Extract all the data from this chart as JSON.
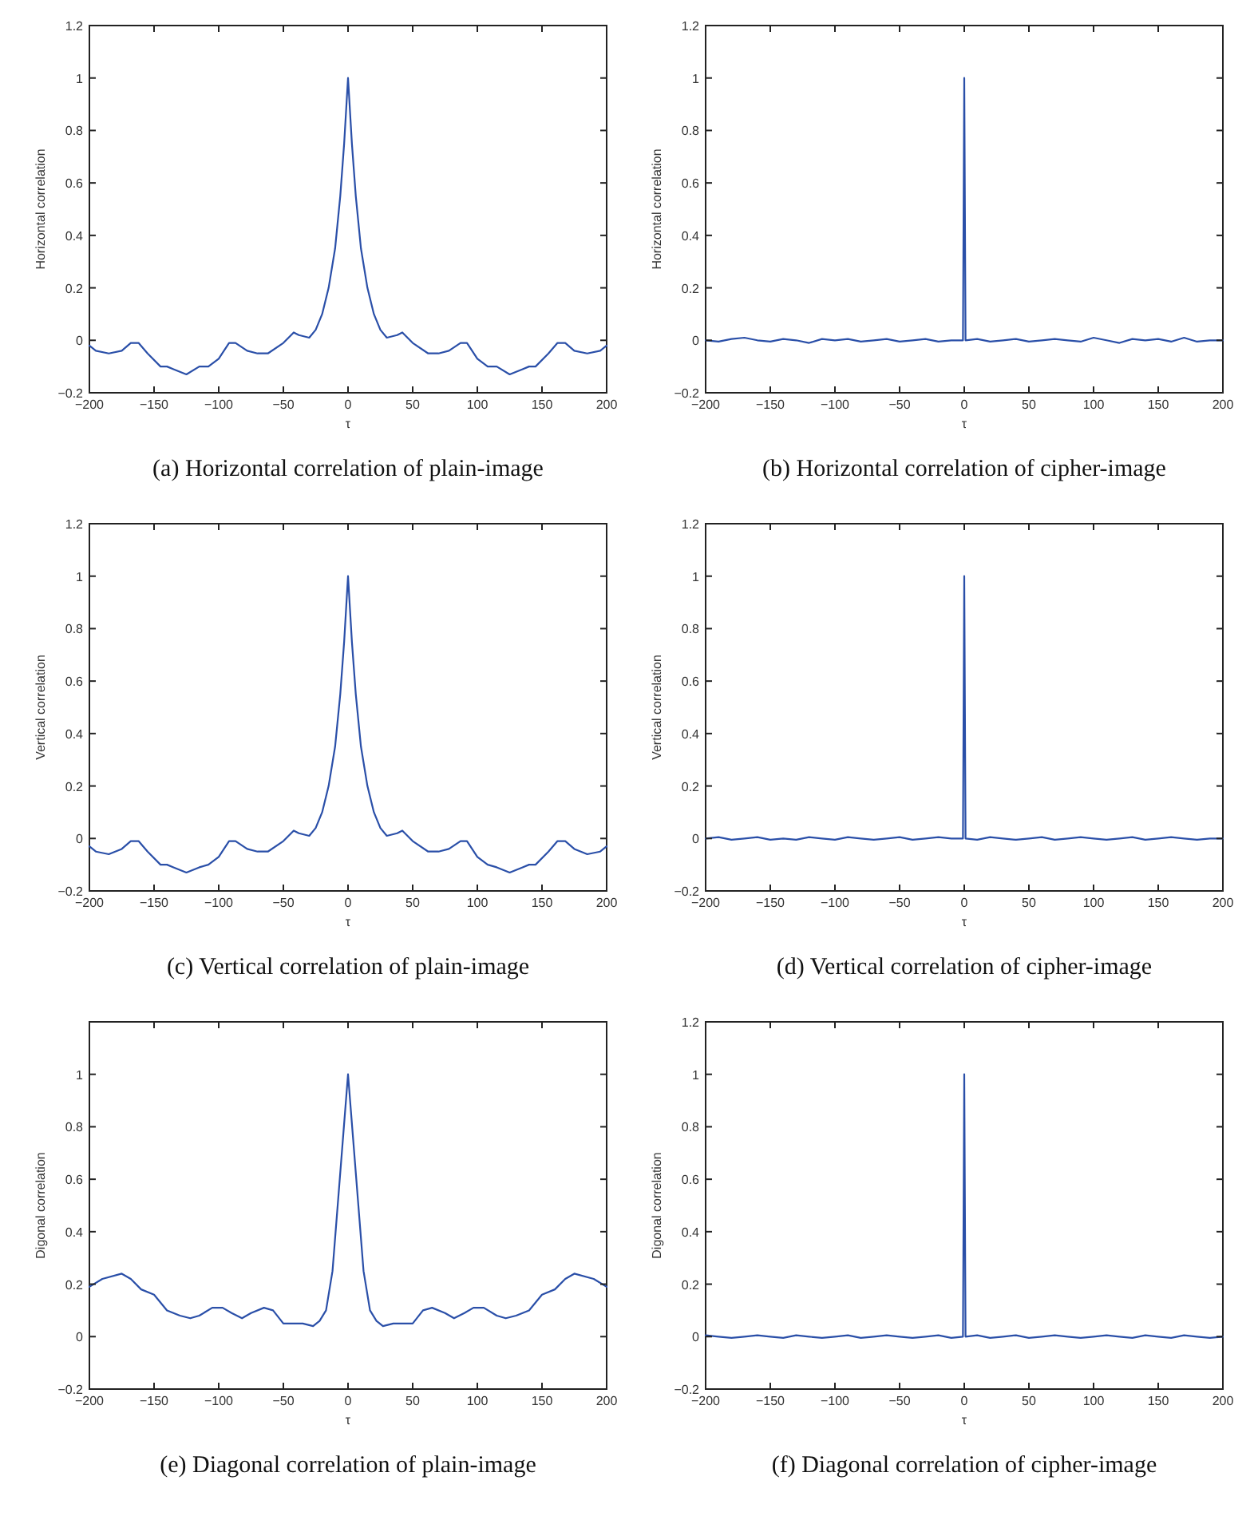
{
  "chart_data": [
    {
      "type": "line",
      "title": "(a) Horizontal correlation of plain-image",
      "xlabel": "τ",
      "ylabel": "Horizontal correlation",
      "xlim": [
        -200,
        200
      ],
      "ylim": [
        -0.2,
        1.2
      ],
      "xticks": [
        -200,
        -150,
        -100,
        -50,
        0,
        50,
        100,
        150,
        200
      ],
      "yticks": [
        -0.2,
        0,
        0.2,
        0.4,
        0.6,
        0.8,
        1,
        1.2
      ],
      "x": [
        -200,
        -195,
        -185,
        -175,
        -168,
        -162,
        -155,
        -145,
        -140,
        -135,
        -125,
        -115,
        -108,
        -100,
        -92,
        -87,
        -78,
        -70,
        -62,
        -50,
        -42,
        -38,
        -30,
        -25,
        -20,
        -15,
        -10,
        -6,
        -3,
        0,
        3,
        6,
        10,
        15,
        20,
        25,
        30,
        38,
        42,
        50,
        62,
        70,
        78,
        87,
        92,
        100,
        108,
        115,
        125,
        135,
        140,
        145,
        155,
        162,
        168,
        175,
        185,
        195,
        200
      ],
      "series": [
        {
          "color": "#2a4fa8",
          "values": [
            -0.02,
            -0.04,
            -0.05,
            -0.04,
            -0.01,
            -0.01,
            -0.05,
            -0.1,
            -0.1,
            -0.11,
            -0.13,
            -0.1,
            -0.1,
            -0.07,
            -0.01,
            -0.01,
            -0.04,
            -0.05,
            -0.05,
            -0.01,
            0.03,
            0.02,
            0.01,
            0.04,
            0.1,
            0.2,
            0.35,
            0.55,
            0.75,
            1,
            0.75,
            0.55,
            0.35,
            0.2,
            0.1,
            0.04,
            0.01,
            0.02,
            0.03,
            -0.01,
            -0.05,
            -0.05,
            -0.04,
            -0.01,
            -0.01,
            -0.07,
            -0.1,
            -0.1,
            -0.13,
            -0.11,
            -0.1,
            -0.1,
            -0.05,
            -0.01,
            -0.01,
            -0.04,
            -0.05,
            -0.04,
            -0.02
          ]
        }
      ]
    },
    {
      "type": "line",
      "title": "(b) Horizontal correlation of cipher-image",
      "xlabel": "τ",
      "ylabel": "Horizontal correlation",
      "xlim": [
        -200,
        200
      ],
      "ylim": [
        -0.2,
        1.2
      ],
      "xticks": [
        -200,
        -150,
        -100,
        -50,
        0,
        50,
        100,
        150,
        200
      ],
      "yticks": [
        -0.2,
        0,
        0.2,
        0.4,
        0.6,
        0.8,
        1,
        1.2
      ],
      "x": [
        -200,
        -190,
        -180,
        -170,
        -160,
        -150,
        -140,
        -130,
        -120,
        -110,
        -100,
        -90,
        -80,
        -70,
        -60,
        -50,
        -40,
        -30,
        -20,
        -10,
        -1,
        0,
        1,
        10,
        20,
        30,
        40,
        50,
        60,
        70,
        80,
        90,
        100,
        110,
        120,
        130,
        140,
        150,
        160,
        170,
        180,
        190,
        200
      ],
      "series": [
        {
          "color": "#2a4fa8",
          "values": [
            0,
            -0.005,
            0.005,
            0.01,
            0,
            -0.005,
            0.005,
            0,
            -0.01,
            0.005,
            0,
            0.005,
            -0.005,
            0,
            0.005,
            -0.005,
            0,
            0.005,
            -0.005,
            0,
            0,
            1,
            0,
            0.005,
            -0.005,
            0,
            0.005,
            -0.005,
            0,
            0.005,
            0,
            -0.005,
            0.01,
            0,
            -0.01,
            0.005,
            0,
            0.005,
            -0.005,
            0.01,
            -0.005,
            0,
            0
          ]
        }
      ]
    },
    {
      "type": "line",
      "title": "(c) Vertical correlation of plain-image",
      "xlabel": "τ",
      "ylabel": "Vertical correlation",
      "xlim": [
        -200,
        200
      ],
      "ylim": [
        -0.2,
        1.2
      ],
      "xticks": [
        -200,
        -150,
        -100,
        -50,
        0,
        50,
        100,
        150,
        200
      ],
      "yticks": [
        -0.2,
        0,
        0.2,
        0.4,
        0.6,
        0.8,
        1,
        1.2
      ],
      "x": [
        -200,
        -195,
        -185,
        -175,
        -168,
        -162,
        -155,
        -145,
        -140,
        -135,
        -125,
        -115,
        -108,
        -100,
        -92,
        -87,
        -78,
        -70,
        -62,
        -50,
        -42,
        -38,
        -30,
        -25,
        -20,
        -15,
        -10,
        -6,
        -3,
        0,
        3,
        6,
        10,
        15,
        20,
        25,
        30,
        38,
        42,
        50,
        62,
        70,
        78,
        87,
        92,
        100,
        108,
        115,
        125,
        135,
        140,
        145,
        155,
        162,
        168,
        175,
        185,
        195,
        200
      ],
      "series": [
        {
          "color": "#2a4fa8",
          "values": [
            -0.03,
            -0.05,
            -0.06,
            -0.04,
            -0.01,
            -0.01,
            -0.05,
            -0.1,
            -0.1,
            -0.11,
            -0.13,
            -0.11,
            -0.1,
            -0.07,
            -0.01,
            -0.01,
            -0.04,
            -0.05,
            -0.05,
            -0.01,
            0.03,
            0.02,
            0.01,
            0.04,
            0.1,
            0.2,
            0.35,
            0.55,
            0.75,
            1,
            0.75,
            0.55,
            0.35,
            0.2,
            0.1,
            0.04,
            0.01,
            0.02,
            0.03,
            -0.01,
            -0.05,
            -0.05,
            -0.04,
            -0.01,
            -0.01,
            -0.07,
            -0.1,
            -0.11,
            -0.13,
            -0.11,
            -0.1,
            -0.1,
            -0.05,
            -0.01,
            -0.01,
            -0.04,
            -0.06,
            -0.05,
            -0.03
          ]
        }
      ]
    },
    {
      "type": "line",
      "title": "(d) Vertical correlation of cipher-image",
      "xlabel": "τ",
      "ylabel": "Vertical correlation",
      "xlim": [
        -200,
        200
      ],
      "ylim": [
        -0.2,
        1.2
      ],
      "xticks": [
        -200,
        -150,
        -100,
        -50,
        0,
        50,
        100,
        150,
        200
      ],
      "yticks": [
        -0.2,
        0,
        0.2,
        0.4,
        0.6,
        0.8,
        1,
        1.2
      ],
      "x": [
        -200,
        -190,
        -180,
        -170,
        -160,
        -150,
        -140,
        -130,
        -120,
        -110,
        -100,
        -90,
        -80,
        -70,
        -60,
        -50,
        -40,
        -30,
        -20,
        -10,
        -1,
        0,
        1,
        10,
        20,
        30,
        40,
        50,
        60,
        70,
        80,
        90,
        100,
        110,
        120,
        130,
        140,
        150,
        160,
        170,
        180,
        190,
        200
      ],
      "series": [
        {
          "color": "#2a4fa8",
          "values": [
            0,
            0.005,
            -0.005,
            0,
            0.005,
            -0.005,
            0,
            -0.005,
            0.005,
            0,
            -0.005,
            0.005,
            0,
            -0.005,
            0,
            0.005,
            -0.005,
            0,
            0.005,
            0,
            0,
            1,
            0,
            -0.005,
            0.005,
            0,
            -0.005,
            0,
            0.005,
            -0.005,
            0,
            0.005,
            0,
            -0.005,
            0,
            0.005,
            -0.005,
            0,
            0.005,
            0,
            -0.005,
            0,
            0
          ]
        }
      ]
    },
    {
      "type": "line",
      "title": "(e) Diagonal correlation of plain-image",
      "xlabel": "τ",
      "ylabel": "Digonal correlation",
      "xlim": [
        -200,
        200
      ],
      "ylim": [
        -0.2,
        1.2
      ],
      "xticks": [
        -200,
        -150,
        -100,
        -50,
        0,
        50,
        100,
        150,
        200
      ],
      "yticks": [
        -0.2,
        0,
        0.2,
        0.4,
        0.6,
        0.8,
        1
      ],
      "x": [
        -200,
        -190,
        -175,
        -168,
        -160,
        -150,
        -140,
        -130,
        -122,
        -115,
        -105,
        -97,
        -90,
        -82,
        -75,
        -65,
        -58,
        -50,
        -40,
        -35,
        -27,
        -22,
        -17,
        -12,
        -8,
        -4,
        0,
        4,
        8,
        12,
        17,
        22,
        27,
        35,
        40,
        50,
        58,
        65,
        75,
        82,
        90,
        97,
        105,
        115,
        122,
        130,
        140,
        150,
        160,
        168,
        175,
        190,
        200
      ],
      "series": [
        {
          "color": "#2a4fa8",
          "values": [
            0.19,
            0.22,
            0.24,
            0.22,
            0.18,
            0.16,
            0.1,
            0.08,
            0.07,
            0.08,
            0.11,
            0.11,
            0.09,
            0.07,
            0.09,
            0.11,
            0.1,
            0.05,
            0.05,
            0.05,
            0.04,
            0.06,
            0.1,
            0.25,
            0.5,
            0.75,
            1,
            0.75,
            0.5,
            0.25,
            0.1,
            0.06,
            0.04,
            0.05,
            0.05,
            0.05,
            0.1,
            0.11,
            0.09,
            0.07,
            0.09,
            0.11,
            0.11,
            0.08,
            0.07,
            0.08,
            0.1,
            0.16,
            0.18,
            0.22,
            0.24,
            0.22,
            0.19
          ]
        }
      ]
    },
    {
      "type": "line",
      "title": "(f) Diagonal correlation of cipher-image",
      "xlabel": "τ",
      "ylabel": "Digonal correlation",
      "xlim": [
        -200,
        200
      ],
      "ylim": [
        -0.2,
        1.2
      ],
      "xticks": [
        -200,
        -150,
        -100,
        -50,
        0,
        50,
        100,
        150,
        200
      ],
      "yticks": [
        -0.2,
        0,
        0.2,
        0.4,
        0.6,
        0.8,
        1,
        1.2
      ],
      "x": [
        -200,
        -190,
        -180,
        -170,
        -160,
        -150,
        -140,
        -130,
        -120,
        -110,
        -100,
        -90,
        -80,
        -70,
        -60,
        -50,
        -40,
        -30,
        -20,
        -10,
        -1,
        0,
        1,
        10,
        20,
        30,
        40,
        50,
        60,
        70,
        80,
        90,
        100,
        110,
        120,
        130,
        140,
        150,
        160,
        170,
        180,
        190,
        200
      ],
      "series": [
        {
          "color": "#2a4fa8",
          "values": [
            0.005,
            0,
            -0.005,
            0,
            0.005,
            0,
            -0.005,
            0.005,
            0,
            -0.005,
            0,
            0.005,
            -0.005,
            0,
            0.005,
            0,
            -0.005,
            0,
            0.005,
            -0.005,
            0,
            1,
            0,
            0.005,
            -0.005,
            0,
            0.005,
            -0.005,
            0,
            0.005,
            0,
            -0.005,
            0,
            0.005,
            0,
            -0.005,
            0.005,
            0,
            -0.005,
            0.005,
            0,
            -0.005,
            0
          ]
        }
      ]
    }
  ]
}
